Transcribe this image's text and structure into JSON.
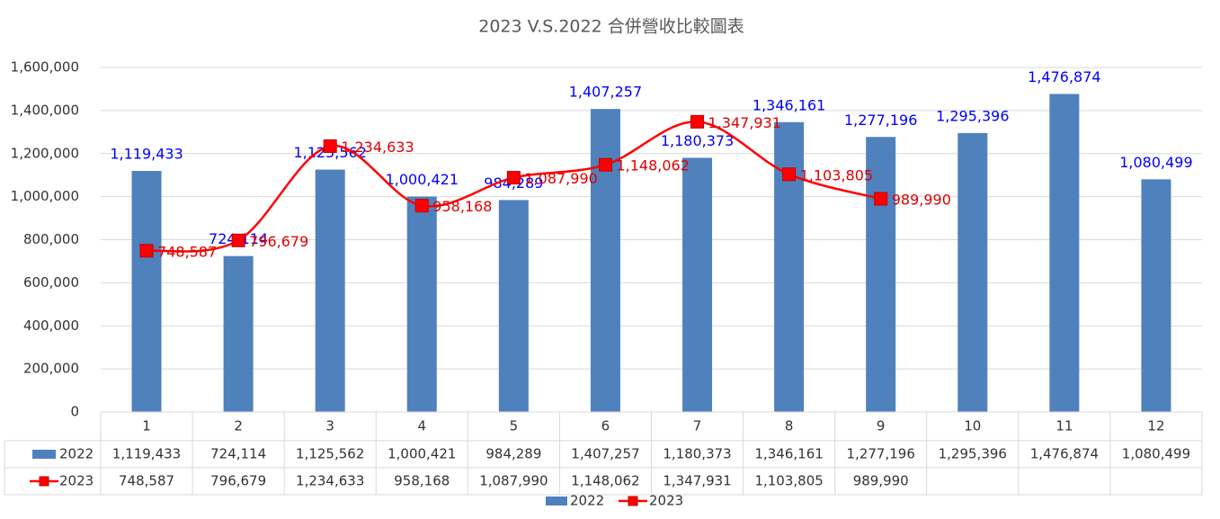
{
  "chart_data": {
    "type": "bar-line",
    "title": "2023 V.S.2022 合併營收比較圖表",
    "categories": [
      "1",
      "2",
      "3",
      "4",
      "5",
      "6",
      "7",
      "8",
      "9",
      "10",
      "11",
      "12"
    ],
    "series": [
      {
        "name": "2022",
        "type": "bar",
        "color": "#4f81bd",
        "values": [
          1119433,
          724114,
          1125562,
          1000421,
          984289,
          1407257,
          1180373,
          1346161,
          1277196,
          1295396,
          1476874,
          1080499
        ],
        "value_labels": [
          "1,119,433",
          "724,114",
          "1,125,562",
          "1,000,421",
          "984,289",
          "1,407,257",
          "1,180,373",
          "1,346,161",
          "1,277,196",
          "1,295,396",
          "1,476,874",
          "1,080,499"
        ]
      },
      {
        "name": "2023",
        "type": "line",
        "color": "#ff0000",
        "values": [
          748587,
          796679,
          1234633,
          958168,
          1087990,
          1148062,
          1347931,
          1103805,
          989990,
          null,
          null,
          null
        ],
        "value_labels": [
          "748,587",
          "796,679",
          "1,234,633",
          "958,168",
          "1,087,990",
          "1,148,062",
          "1,347,931",
          "1,103,805",
          "989,990",
          null,
          null,
          null
        ]
      }
    ],
    "ylim": [
      0,
      1600000
    ],
    "yticks": [
      0,
      {
        "value": 200000,
        "label": "200,000"
      },
      {
        "value": 400000,
        "label": "400,000"
      },
      {
        "value": 600000,
        "label": "600,000"
      },
      {
        "value": 800000,
        "label": "800,000"
      },
      {
        "value": 1000000,
        "label": "1,000,000"
      },
      {
        "value": 1200000,
        "label": "1,200,000"
      },
      {
        "value": 1400000,
        "label": "1,400,000"
      },
      {
        "value": 1600000,
        "label": "1,600,000"
      }
    ],
    "grid": true,
    "legend": "bottom"
  }
}
